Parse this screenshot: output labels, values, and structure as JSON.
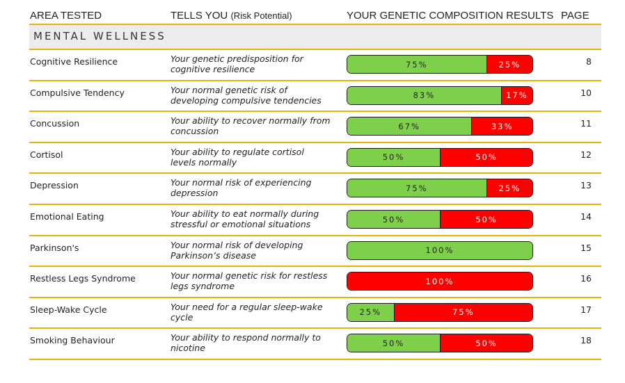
{
  "columns": {
    "area": "AREA TESTED",
    "tells": "TELLS YOU",
    "tells_sub": "(Risk Potential)",
    "results": "YOUR GENETIC COMPOSITION RESULTS",
    "page": "PAGE"
  },
  "section_title": "MENTAL WELLNESS",
  "colors": {
    "low_risk": "#7ed04b",
    "high_risk": "#ff0000",
    "rule": "#e8b400"
  },
  "rows": [
    {
      "area": "Cognitive Resilience",
      "tells": "Your genetic predisposition for cognitive resilience",
      "green": 75,
      "red": 25,
      "green_label": "75%",
      "red_label": "25%",
      "page": "8"
    },
    {
      "area": "Compulsive Tendency",
      "tells": "Your normal genetic risk of developing compulsive tendencies",
      "green": 83,
      "red": 17,
      "green_label": "83%",
      "red_label": "17%",
      "page": "10"
    },
    {
      "area": "Concussion",
      "tells": "Your ability to recover normally from concussion",
      "green": 67,
      "red": 33,
      "green_label": "67%",
      "red_label": "33%",
      "page": "11"
    },
    {
      "area": "Cortisol",
      "tells": "Your ability to regulate cortisol levels normally",
      "green": 50,
      "red": 50,
      "green_label": "50%",
      "red_label": "50%",
      "page": "12"
    },
    {
      "area": "Depression",
      "tells": "Your normal risk of experiencing depression",
      "green": 75,
      "red": 25,
      "green_label": "75%",
      "red_label": "25%",
      "page": "13"
    },
    {
      "area": "Emotional Eating",
      "tells": "Your ability to eat normally during stressful or emotional situations",
      "green": 50,
      "red": 50,
      "green_label": "50%",
      "red_label": "50%",
      "page": "14"
    },
    {
      "area": "Parkinson's",
      "tells": "Your normal risk of developing Parkinson’s disease",
      "green": 100,
      "red": 0,
      "green_label": "100%",
      "red_label": "",
      "page": "15"
    },
    {
      "area": "Restless Legs Syndrome",
      "tells": "Your normal genetic risk for restless legs syndrome",
      "green": 0,
      "red": 100,
      "green_label": "",
      "red_label": "100%",
      "page": "16"
    },
    {
      "area": "Sleep-Wake Cycle",
      "tells": "Your need for a regular sleep-wake cycle",
      "green": 25,
      "red": 75,
      "green_label": "25%",
      "red_label": "75%",
      "page": "17"
    },
    {
      "area": "Smoking Behaviour",
      "tells": "Your ability to respond normally to nicotine",
      "green": 50,
      "red": 50,
      "green_label": "50%",
      "red_label": "50%",
      "page": "18"
    }
  ]
}
